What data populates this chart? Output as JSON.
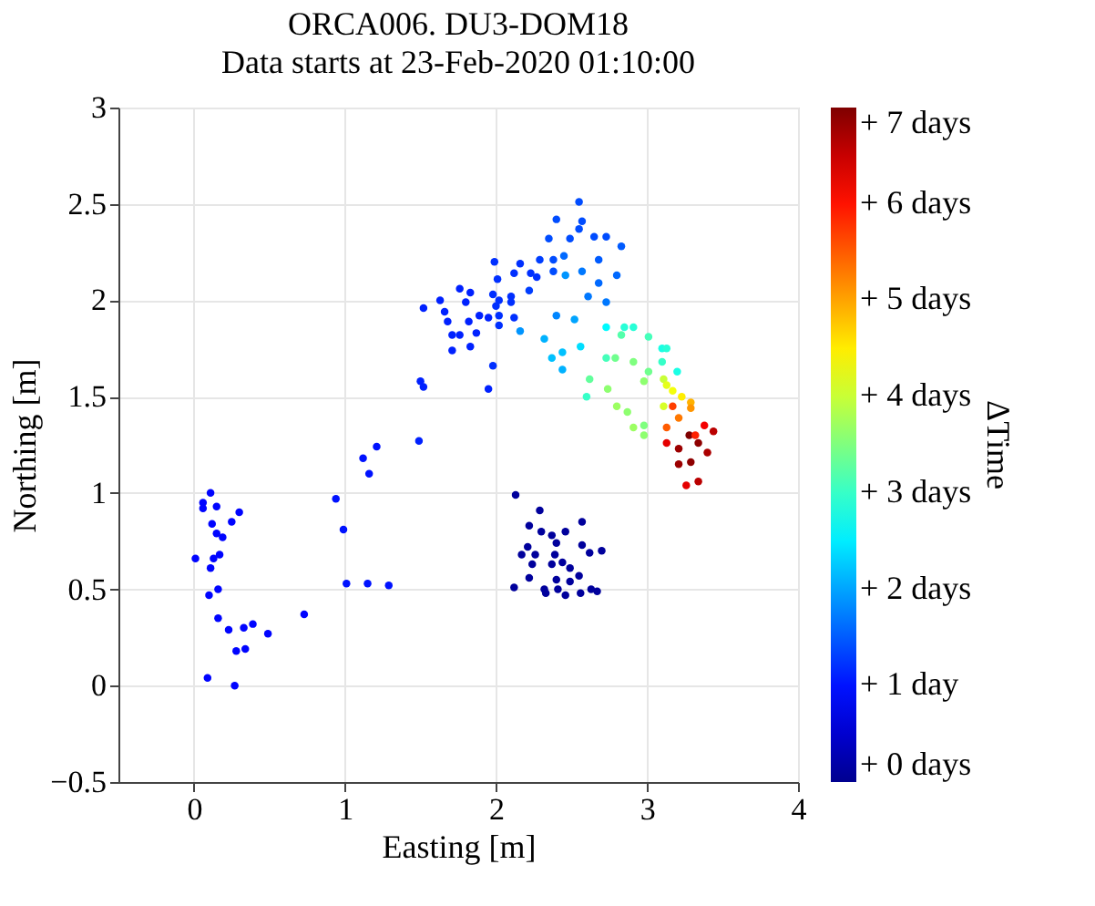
{
  "chart_data": {
    "type": "scatter",
    "title": "ORCA006. DU3-DOM18",
    "subtitle": "Data starts at 23-Feb-2020 01:10:00",
    "xlabel": "Easting [m]",
    "ylabel": "Northing [m]",
    "clabel": "ΔTime",
    "xlim": [
      -0.5,
      4
    ],
    "xticks": [
      0,
      1,
      2,
      3,
      4
    ],
    "ylim": [
      -0.5,
      3
    ],
    "yticks": [
      -0.5,
      0,
      0.5,
      1,
      1.5,
      2,
      2.5,
      3
    ],
    "clim": [
      0,
      7
    ],
    "cticks": [
      {
        "value": 0,
        "label": "+ 0 days"
      },
      {
        "value": 1,
        "label": "+ 1 day"
      },
      {
        "value": 2,
        "label": "+ 2 days"
      },
      {
        "value": 3,
        "label": "+ 3 days"
      },
      {
        "value": 4,
        "label": "+ 4 days"
      },
      {
        "value": 5,
        "label": "+ 5 days"
      },
      {
        "value": 6,
        "label": "+ 6 days"
      },
      {
        "value": 7,
        "label": "+ 7 days"
      }
    ],
    "grid": true,
    "marker": "circle",
    "x": [
      0.11,
      0.06,
      0.06,
      0.15,
      0.3,
      0.12,
      0.25,
      0.15,
      0.19,
      0.01,
      0.13,
      0.17,
      0.11,
      0.1,
      0.16,
      0.16,
      0.23,
      0.33,
      0.39,
      0.49,
      0.28,
      0.34,
      0.09,
      0.27,
      0.73,
      0.94,
      0.99,
      1.01,
      1.15,
      1.29,
      1.12,
      1.21,
      1.16,
      1.49,
      2.13,
      2.29,
      2.57,
      2.22,
      2.3,
      2.37,
      2.46,
      2.4,
      2.21,
      2.57,
      2.17,
      2.26,
      2.39,
      2.62,
      2.7,
      2.24,
      2.37,
      2.44,
      2.49,
      2.22,
      2.55,
      2.4,
      2.49,
      2.12,
      2.32,
      2.41,
      2.63,
      2.33,
      2.46,
      2.56,
      2.67,
      2.55,
      2.4,
      2.57,
      2.35,
      2.49,
      2.65,
      2.73,
      2.83,
      2.55,
      2.38,
      2.29,
      2.68,
      1.99,
      2.16,
      2.23,
      2.01,
      2.12,
      2.27,
      2.38,
      1.76,
      1.83,
      1.63,
      1.52,
      1.98,
      2.1,
      2.02,
      2.22,
      1.8,
      1.66,
      2.0,
      2.1,
      1.89,
      1.95,
      2.02,
      1.68,
      1.82,
      2.12,
      2.02,
      1.71,
      1.76,
      1.87,
      1.71,
      1.83,
      1.98,
      1.5,
      1.52,
      1.95,
      2.45,
      2.57,
      2.8,
      2.68,
      2.61,
      2.73,
      2.46,
      2.16,
      2.4,
      2.52,
      2.32,
      2.44,
      2.56,
      2.73,
      2.85,
      2.91,
      2.37,
      2.44,
      2.73,
      2.79,
      2.62,
      2.74,
      2.6,
      2.83,
      3.01,
      3.1,
      3.13,
      2.91,
      2.98,
      3.1,
      3.2,
      2.8,
      2.87,
      2.91,
      2.98,
      2.98,
      3.01,
      3.11,
      3.13,
      3.17,
      3.23,
      3.11,
      3.29,
      3.29,
      3.13,
      3.21,
      3.38,
      3.44,
      3.13,
      3.21,
      3.34,
      3.4,
      3.29,
      3.21,
      3.26,
      3.34,
      3.17,
      3.28,
      3.32
    ],
    "values": [
      1.0,
      0.95,
      0.92,
      0.93,
      0.9,
      0.84,
      0.85,
      0.79,
      0.77,
      0.66,
      0.66,
      0.68,
      0.61,
      0.47,
      0.5,
      0.35,
      0.29,
      0.3,
      0.32,
      0.27,
      0.18,
      0.19,
      0.04,
      0.0,
      0.37,
      0.97,
      0.81,
      0.53,
      0.53,
      0.52,
      1.18,
      1.24,
      1.1,
      1.27,
      0.99,
      0.91,
      0.85,
      0.83,
      0.8,
      0.78,
      0.8,
      0.74,
      0.72,
      0.73,
      0.68,
      0.68,
      0.68,
      0.69,
      0.7,
      0.63,
      0.63,
      0.64,
      0.61,
      0.56,
      0.57,
      0.55,
      0.54,
      0.51,
      0.5,
      0.5,
      0.5,
      0.48,
      0.47,
      0.48,
      0.49,
      2.51,
      2.42,
      2.41,
      2.32,
      2.32,
      2.33,
      2.33,
      2.28,
      2.37,
      2.21,
      2.21,
      2.21,
      2.2,
      2.19,
      2.14,
      2.11,
      2.14,
      2.12,
      2.15,
      2.06,
      2.04,
      2.0,
      1.96,
      2.03,
      2.02,
      2.0,
      2.05,
      1.99,
      1.94,
      1.97,
      1.99,
      1.92,
      1.91,
      1.92,
      1.89,
      1.89,
      1.91,
      1.87,
      1.82,
      1.82,
      1.83,
      1.74,
      1.76,
      1.66,
      1.58,
      1.55,
      1.54,
      2.23,
      2.15,
      2.13,
      2.09,
      2.02,
      1.99,
      2.13,
      1.84,
      1.92,
      1.9,
      1.8,
      1.73,
      1.76,
      1.86,
      1.86,
      1.86,
      1.7,
      1.64,
      1.7,
      1.7,
      1.59,
      1.54,
      1.5,
      1.82,
      1.81,
      1.75,
      1.75,
      1.68,
      1.58,
      1.68,
      1.63,
      1.45,
      1.42,
      1.34,
      1.3,
      1.35,
      1.63,
      1.59,
      1.56,
      1.53,
      1.5,
      1.45,
      1.47,
      1.44,
      1.34,
      1.39,
      1.35,
      1.32,
      1.26,
      1.23,
      1.26,
      1.21,
      1.16,
      1.15,
      1.04,
      1.06,
      1.45,
      1.3,
      1.3
    ],
    "cvalues": [
      0.9,
      0.9,
      0.9,
      0.9,
      0.9,
      0.9,
      0.9,
      0.9,
      0.9,
      0.9,
      0.9,
      0.9,
      0.9,
      0.9,
      0.9,
      0.9,
      0.9,
      0.9,
      0.9,
      0.9,
      0.9,
      0.9,
      0.9,
      0.9,
      0.9,
      1.0,
      1.0,
      1.0,
      1.0,
      1.0,
      1.0,
      1.0,
      1.0,
      1.1,
      0.1,
      0.1,
      0.1,
      0.1,
      0.1,
      0.1,
      0.1,
      0.1,
      0.1,
      0.1,
      0.1,
      0.1,
      0.1,
      0.1,
      0.1,
      0.1,
      0.1,
      0.1,
      0.1,
      0.1,
      0.1,
      0.1,
      0.1,
      0.1,
      0.1,
      0.1,
      0.1,
      0.1,
      0.1,
      0.1,
      0.1,
      1.4,
      1.4,
      1.4,
      1.4,
      1.4,
      1.4,
      1.4,
      1.5,
      1.4,
      1.4,
      1.3,
      1.5,
      1.2,
      1.2,
      1.2,
      1.2,
      1.2,
      1.2,
      1.4,
      1.1,
      1.1,
      1.1,
      1.1,
      1.2,
      1.2,
      1.2,
      1.3,
      1.1,
      1.1,
      1.2,
      1.2,
      1.1,
      1.1,
      1.2,
      1.1,
      1.1,
      1.2,
      1.2,
      1.1,
      1.1,
      1.1,
      1.1,
      1.1,
      1.2,
      1.1,
      1.1,
      1.1,
      1.6,
      1.7,
      1.6,
      1.6,
      1.7,
      1.7,
      1.9,
      1.9,
      1.8,
      2.0,
      2.1,
      2.2,
      2.4,
      2.6,
      2.9,
      2.9,
      2.2,
      2.1,
      3.1,
      3.4,
      3.3,
      3.6,
      3.0,
      3.2,
      3.1,
      2.8,
      2.9,
      3.5,
      3.6,
      3.0,
      2.8,
      3.7,
      3.6,
      3.7,
      3.6,
      3.5,
      3.4,
      4.0,
      4.2,
      4.3,
      4.5,
      4.1,
      4.9,
      5.1,
      5.5,
      5.3,
      6.2,
      6.6,
      6.3,
      6.8,
      6.9,
      6.7,
      6.9,
      6.8,
      6.3,
      6.6,
      5.7,
      7.0,
      5.9
    ]
  }
}
